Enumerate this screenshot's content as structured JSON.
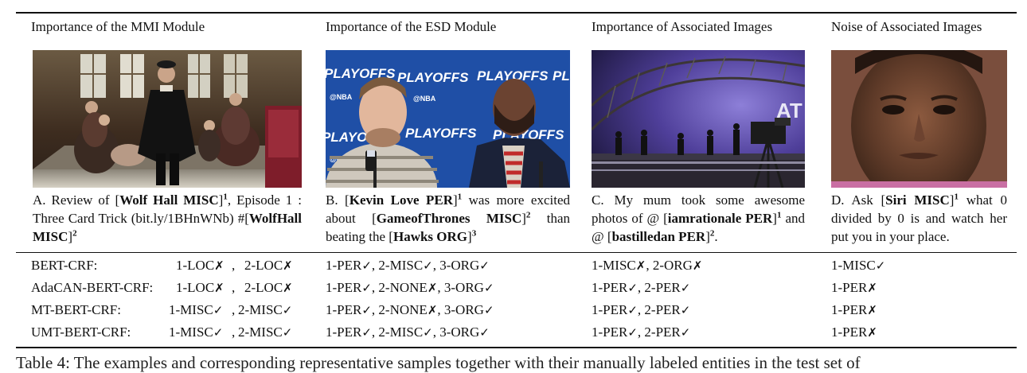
{
  "headers": [
    "Importance of the MMI Module",
    "Importance of the ESD Module",
    "Importance of Associated Images",
    "Noise of Associated Images"
  ],
  "captions": [
    {
      "parts": [
        {
          "t": "A. Review of [",
          "b": false
        },
        {
          "t": "Wolf Hall MISC",
          "b": true
        },
        {
          "t": "]",
          "b": false
        },
        {
          "sup": "1"
        },
        {
          "t": ", Episode 1 : Three Card Trick (bit.ly/1BHnWNb) #[",
          "b": false
        },
        {
          "t": "WolfHall MISC",
          "b": true
        },
        {
          "t": "]",
          "b": false
        },
        {
          "sup": "2"
        }
      ]
    },
    {
      "parts": [
        {
          "t": "B. [",
          "b": false
        },
        {
          "t": "Kevin Love PER",
          "b": true
        },
        {
          "t": "]",
          "b": false
        },
        {
          "sup": "1"
        },
        {
          "t": " was more excited about [",
          "b": false
        },
        {
          "t": "GameofThrones MISC",
          "b": true
        },
        {
          "t": "]",
          "b": false
        },
        {
          "sup": "2"
        },
        {
          "t": " than beating the [",
          "b": false
        },
        {
          "t": "Hawks ORG",
          "b": true
        },
        {
          "t": "]",
          "b": false
        },
        {
          "sup": "3"
        }
      ]
    },
    {
      "parts": [
        {
          "t": "C. My mum took some awesome photos of @ [",
          "b": false
        },
        {
          "t": "iamrationale PER",
          "b": true
        },
        {
          "t": "]",
          "b": false
        },
        {
          "sup": "1"
        },
        {
          "t": " and @ [",
          "b": false
        },
        {
          "t": "bastilledan PER",
          "b": true
        },
        {
          "t": "]",
          "b": false
        },
        {
          "sup": "2"
        },
        {
          "t": ".",
          "b": false
        }
      ]
    },
    {
      "parts": [
        {
          "t": "D. Ask [",
          "b": false
        },
        {
          "t": "Siri MISC",
          "b": true
        },
        {
          "t": "]",
          "b": false
        },
        {
          "sup": "1"
        },
        {
          "t": " what 0 divided by 0 is and watch her put you in your place.",
          "b": false
        }
      ]
    }
  ],
  "results": [
    {
      "model": "BERT-CRF:",
      "cols": [
        [
          [
            "1-LOC",
            false
          ],
          [
            "2-LOC",
            false
          ]
        ],
        [
          [
            "1-PER",
            true
          ],
          [
            "2-MISC",
            true
          ],
          [
            "3-ORG",
            true
          ]
        ],
        [
          [
            "1-MISC",
            false
          ],
          [
            "2-ORG",
            false
          ]
        ],
        [
          [
            "1-MISC",
            true
          ]
        ]
      ]
    },
    {
      "model": "AdaCAN-BERT-CRF:",
      "cols": [
        [
          [
            "1-LOC",
            false
          ],
          [
            "2-LOC",
            false
          ]
        ],
        [
          [
            "1-PER",
            true
          ],
          [
            "2-NONE",
            false
          ],
          [
            "3-ORG",
            true
          ]
        ],
        [
          [
            "1-PER",
            true
          ],
          [
            "2-PER",
            true
          ]
        ],
        [
          [
            "1-PER",
            false
          ]
        ]
      ]
    },
    {
      "model": "MT-BERT-CRF:",
      "cols": [
        [
          [
            "1-MISC",
            true
          ],
          [
            "2-MISC",
            true
          ]
        ],
        [
          [
            "1-PER",
            true
          ],
          [
            "2-NONE",
            false
          ],
          [
            "3-ORG",
            true
          ]
        ],
        [
          [
            "1-PER",
            true
          ],
          [
            "2-PER",
            true
          ]
        ],
        [
          [
            "1-PER",
            false
          ]
        ]
      ]
    },
    {
      "model": "UMT-BERT-CRF:",
      "cols": [
        [
          [
            "1-MISC",
            true
          ],
          [
            "2-MISC",
            true
          ]
        ],
        [
          [
            "1-PER",
            true
          ],
          [
            "2-MISC",
            true
          ],
          [
            "3-ORG",
            true
          ]
        ],
        [
          [
            "1-PER",
            true
          ],
          [
            "2-PER",
            true
          ]
        ],
        [
          [
            "1-PER",
            false
          ]
        ]
      ]
    }
  ],
  "marks": {
    "ok": "✓",
    "x": "✗"
  },
  "footer_caption": "Table 4: The examples and corresponding representative samples together with their manually labeled entities in the test set of"
}
